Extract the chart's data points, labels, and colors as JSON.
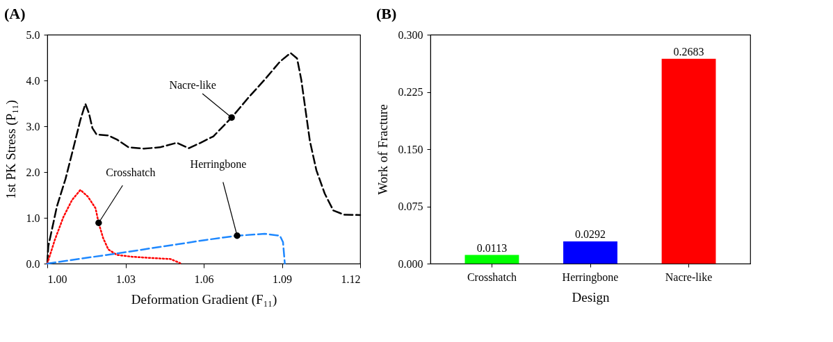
{
  "chart_data": [
    {
      "type": "line",
      "title": "(A)",
      "xlabel": "Deformation Gradient (F₁₁)",
      "ylabel": "1st PK Stress (P₁₁)",
      "xlim": [
        1.0,
        1.12
      ],
      "xticks": [
        {
          "value": 1.0,
          "label": "1.00"
        },
        {
          "value": 1.03,
          "label": "1.03"
        },
        {
          "value": 1.06,
          "label": "1.06"
        },
        {
          "value": 1.09,
          "label": "1.09"
        },
        {
          "value": 1.12,
          "label": "1.12"
        }
      ],
      "ylim": [
        0,
        5
      ],
      "yticks": [
        {
          "value": 0,
          "label": "0.0"
        },
        {
          "value": 1,
          "label": "1.0"
        },
        {
          "value": 2,
          "label": "2.0"
        },
        {
          "value": 3,
          "label": "3.0"
        },
        {
          "value": 4,
          "label": "4.0"
        },
        {
          "value": 5,
          "label": "5.0"
        }
      ],
      "grid": false,
      "series": [
        {
          "color": "#000000",
          "line_style": "dashed",
          "x": [
            1.0,
            1.0004,
            1.0037,
            1.007,
            1.0103,
            1.0127,
            1.0146,
            1.016,
            1.0173,
            1.0189,
            1.0234,
            1.0267,
            1.0312,
            1.037,
            1.0432,
            1.0497,
            1.0543,
            1.0588,
            1.0637,
            1.0707,
            1.0769,
            1.0834,
            1.0892,
            1.0933,
            1.0958,
            1.0974,
            1.099,
            1.1007,
            1.1032,
            1.1064,
            1.1097,
            1.1138,
            1.12
          ],
          "values": [
            0,
            0.38,
            1.25,
            1.85,
            2.59,
            3.14,
            3.49,
            3.28,
            2.96,
            2.82,
            2.8,
            2.71,
            2.54,
            2.51,
            2.54,
            2.64,
            2.52,
            2.64,
            2.78,
            3.19,
            3.61,
            4.02,
            4.41,
            4.6,
            4.48,
            4.02,
            3.37,
            2.68,
            2.04,
            1.53,
            1.16,
            1.07,
            1.06
          ]
        },
        {
          "color": "#ff0000",
          "line_style": "dotted",
          "x": [
            1.0,
            1.0029,
            1.0062,
            1.0095,
            1.0127,
            1.0156,
            1.0185,
            1.0197,
            1.0214,
            1.0234,
            1.0267,
            1.0325,
            1.0407,
            1.0473,
            1.051
          ],
          "values": [
            0,
            0.52,
            1.02,
            1.39,
            1.61,
            1.46,
            1.21,
            0.89,
            0.56,
            0.31,
            0.19,
            0.15,
            0.12,
            0.1,
            0.01
          ]
        },
        {
          "color": "#1e88ff",
          "line_style": "dashed",
          "x": [
            1.0,
            1.03,
            1.0612,
            1.0728,
            1.0834,
            1.0892,
            1.0904,
            1.0911
          ],
          "values": [
            0,
            0.25,
            0.52,
            0.61,
            0.65,
            0.61,
            0.47,
            0
          ]
        }
      ],
      "annotations": [
        {
          "text": "Nacre-like",
          "x": 1.0707,
          "y": 3.19
        },
        {
          "text": "Crosshatch",
          "x": 1.0197,
          "y": 0.89
        },
        {
          "text": "Herringbone",
          "x": 1.0728,
          "y": 0.61
        }
      ]
    },
    {
      "type": "bar",
      "title": "(B)",
      "xlabel": "Design",
      "ylabel": "Work of Fracture",
      "categories": [
        "Crosshatch",
        "Herringbone",
        "Nacre-like"
      ],
      "values": [
        0.0113,
        0.0292,
        0.2683
      ],
      "colors": [
        "#00ff00",
        "#0000ff",
        "#ff0000"
      ],
      "ylim": [
        0,
        0.3
      ],
      "yticks": [
        {
          "value": 0,
          "label": "0.000"
        },
        {
          "value": 0.075,
          "label": "0.075"
        },
        {
          "value": 0.15,
          "label": "0.150"
        },
        {
          "value": 0.225,
          "label": "0.225"
        },
        {
          "value": 0.3,
          "label": "0.300"
        }
      ],
      "data_labels": true,
      "grid": false
    }
  ]
}
